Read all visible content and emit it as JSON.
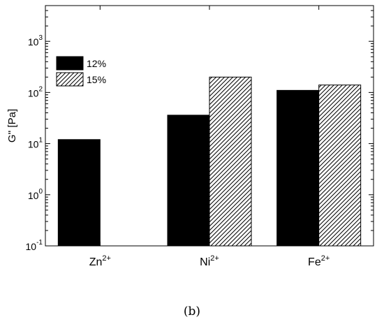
{
  "chart_data": {
    "type": "bar",
    "title": "",
    "xlabel": "",
    "ylabel": "G'' [Pa]",
    "yscale": "log",
    "ylim": [
      0.1,
      5000
    ],
    "grid": false,
    "legend_placement": "top-left",
    "y_ticks": [
      {
        "base": "10",
        "exp": "-1",
        "value": 0.1
      },
      {
        "base": "10",
        "exp": "0",
        "value": 1
      },
      {
        "base": "10",
        "exp": "1",
        "value": 10
      },
      {
        "base": "10",
        "exp": "2",
        "value": 100
      },
      {
        "base": "10",
        "exp": "3",
        "value": 1000
      }
    ],
    "categories": [
      {
        "symbol": "Zn",
        "charge": "2+"
      },
      {
        "symbol": "Ni",
        "charge": "2+"
      },
      {
        "symbol": "Fe",
        "charge": "2+"
      }
    ],
    "series": [
      {
        "name": "12%",
        "fill": "solid",
        "color": "#000000",
        "values": [
          12,
          36,
          110
        ]
      },
      {
        "name": "15%",
        "fill": "hatched",
        "color": "#000000",
        "values": [
          null,
          200,
          140
        ]
      }
    ]
  },
  "caption": "(b)"
}
